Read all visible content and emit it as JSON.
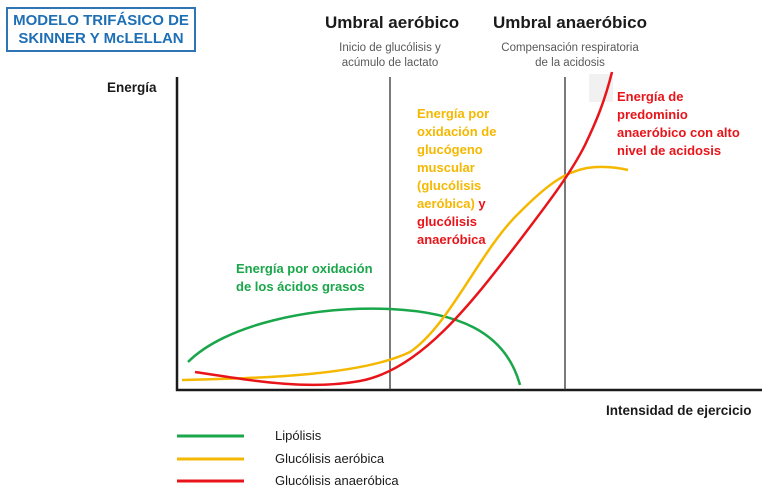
{
  "title": {
    "line1": "MODELO TRIFÁSICO DE",
    "line2": "SKINNER Y McLELLAN"
  },
  "thresholds": {
    "aerobic": {
      "title": "Umbral aeróbico",
      "sub1": "Inicio de glucólisis y",
      "sub2": "acúmulo de lactato"
    },
    "anaerobic": {
      "title": "Umbral anaeróbico",
      "sub1": "Compensación respiratoria",
      "sub2": "de la acidosis"
    }
  },
  "axes": {
    "y_label": "Energía",
    "x_label": "Intensidad de ejercicio"
  },
  "annotations": {
    "fat": [
      "Energía por oxidación",
      "de los ácidos grasos"
    ],
    "glycogen": [
      "Energía por",
      "oxidación de",
      "glucógeno",
      "muscular",
      "(glucólisis",
      "aeróbica)",
      "glucólisis",
      "anaeróbica"
    ],
    "glycogen_y": " y",
    "anaerobic": [
      "Energía de",
      "predominio",
      "anaeróbico con alto",
      "nivel de acidosis"
    ]
  },
  "legend": [
    {
      "label": "Lipólisis",
      "color": "#1aa64a"
    },
    {
      "label": "Glucólisis aeróbica",
      "color": "#f5b800"
    },
    {
      "label": "Glucólisis anaeróbica",
      "color": "#e8141a"
    }
  ],
  "colors": {
    "green": "#1aa64a",
    "yellow": "#f5b800",
    "red": "#e8141a",
    "title_blue": "#1f6fb5",
    "axis": "#1a1a1a"
  }
}
